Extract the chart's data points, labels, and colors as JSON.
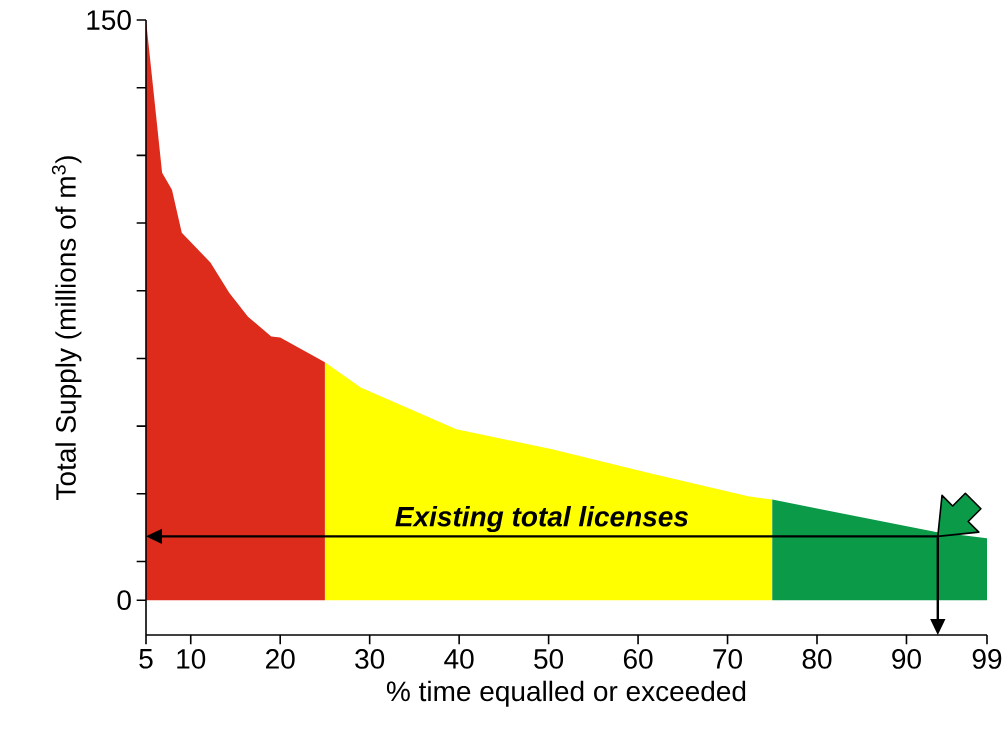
{
  "chart_data": {
    "type": "area",
    "xlabel": "% time equalled or exceeded",
    "ylabel": "Total Supply (millions of m$^{3}$)",
    "xlim": [
      5,
      99
    ],
    "ylim": [
      -9,
      150
    ],
    "xticks": [
      5,
      10,
      20,
      30,
      40,
      50,
      60,
      70,
      80,
      90,
      99
    ],
    "yticks": [
      0,
      {
        "value": 10,
        "label": null
      },
      {
        "value": 27.5,
        "label": null
      },
      {
        "value": 45,
        "label": null
      },
      {
        "value": 62.5,
        "label": null
      },
      {
        "value": 80,
        "label": null
      },
      {
        "value": 97.5,
        "label": null
      },
      {
        "value": 115,
        "label": null
      },
      {
        "value": 132.5,
        "label": null
      },
      150
    ],
    "series": [
      {
        "color": "#de2c1c",
        "x": [
          5,
          6.8,
          7.9,
          9,
          12.2,
          14.3,
          16.4,
          19,
          20,
          25
        ],
        "values": [
          150,
          110.5,
          106.1,
          95,
          87.3,
          79.5,
          73.3,
          68.2,
          67.9,
          61.5
        ]
      },
      {
        "color": "#ffff00",
        "x": [
          25,
          29,
          39.7,
          50.4,
          61,
          72.3,
          75
        ],
        "values": [
          61.5,
          55,
          44.2,
          39,
          33,
          26.9,
          26
        ]
      },
      {
        "color": "#0a9a48",
        "x": [
          75,
          93.3,
          99
        ],
        "values": [
          26,
          17.6,
          16
        ]
      }
    ],
    "ref_lines": [
      {
        "axis": "y",
        "value": 16.5,
        "label": "Existing total licenses"
      },
      {
        "axis": "x",
        "value": 93.5
      }
    ]
  }
}
